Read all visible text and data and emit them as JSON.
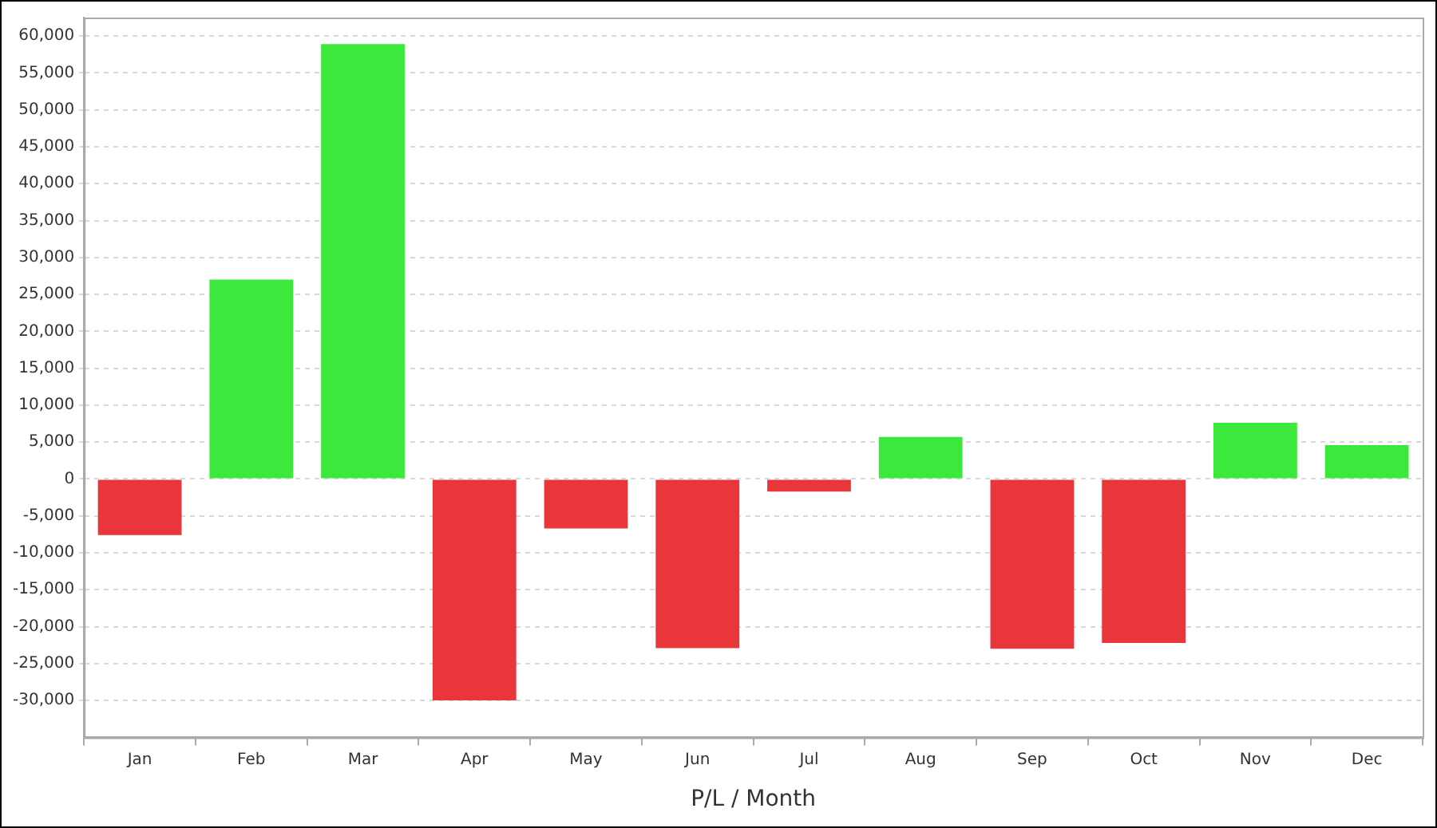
{
  "chart_data": {
    "type": "bar",
    "xlabel": "P/L / Month",
    "categories": [
      "Jan",
      "Feb",
      "Mar",
      "Apr",
      "May",
      "Jun",
      "Jul",
      "Aug",
      "Sep",
      "Oct",
      "Nov",
      "Dec"
    ],
    "values": [
      -7600,
      27000,
      58900,
      -30000,
      -6700,
      -22900,
      -1700,
      5700,
      -23000,
      -22200,
      7600,
      4600
    ],
    "colors": [
      "#e8363b",
      "#3de83d",
      "#3de83d",
      "#e8363b",
      "#e8363b",
      "#e8363b",
      "#e8363b",
      "#3de83d",
      "#e8363b",
      "#e8363b",
      "#3de83d",
      "#3de83d"
    ],
    "ylim": [
      -35000,
      62500
    ],
    "yticks": [
      {
        "value": -30000,
        "label": "-30,000"
      },
      {
        "value": -25000,
        "label": "-25,000"
      },
      {
        "value": -20000,
        "label": "-20,000"
      },
      {
        "value": -15000,
        "label": "-15,000"
      },
      {
        "value": -10000,
        "label": "-10,000"
      },
      {
        "value": -5000,
        "label": "-5,000"
      },
      {
        "value": 0,
        "label": "0"
      },
      {
        "value": 5000,
        "label": "5,000"
      },
      {
        "value": 10000,
        "label": "10,000"
      },
      {
        "value": 15000,
        "label": "15,000"
      },
      {
        "value": 20000,
        "label": "20,000"
      },
      {
        "value": 25000,
        "label": "25,000"
      },
      {
        "value": 30000,
        "label": "30,000"
      },
      {
        "value": 35000,
        "label": "35,000"
      },
      {
        "value": 40000,
        "label": "40,000"
      },
      {
        "value": 45000,
        "label": "45,000"
      },
      {
        "value": 50000,
        "label": "50,000"
      },
      {
        "value": 55000,
        "label": "55,000"
      },
      {
        "value": 60000,
        "label": "60,000"
      }
    ],
    "grid": "y",
    "legend": false
  }
}
